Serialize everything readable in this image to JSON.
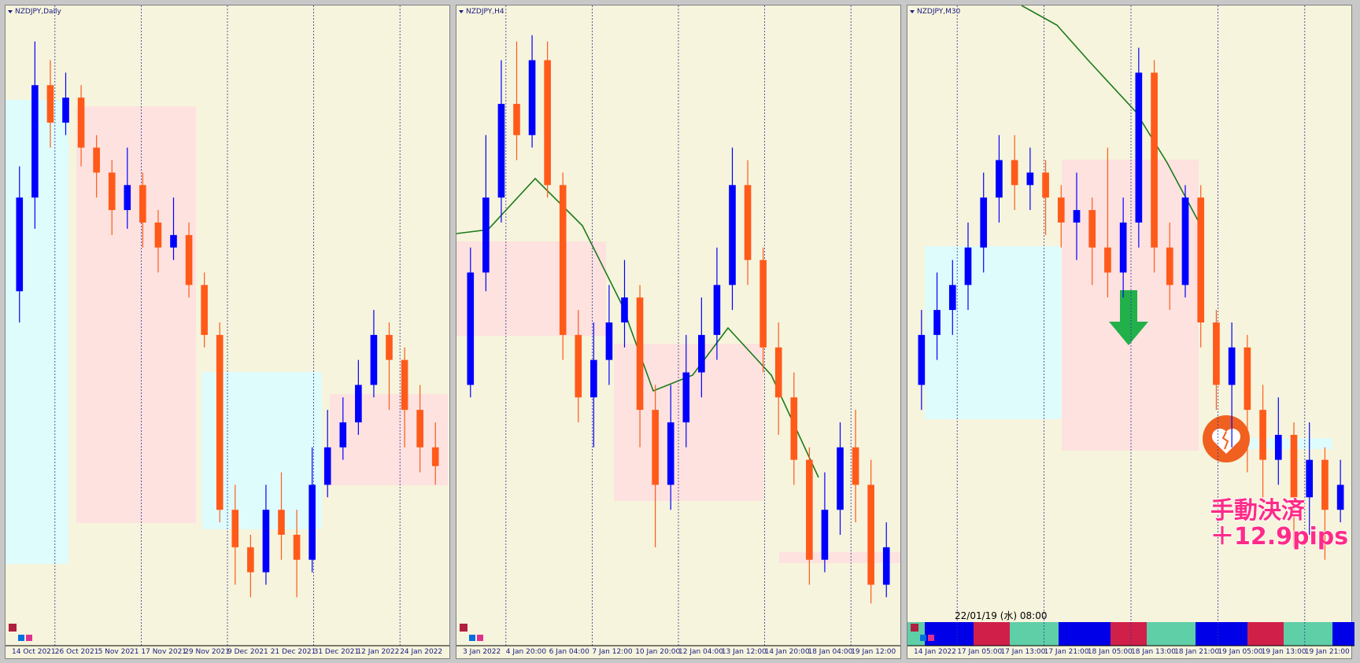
{
  "chart_data": [
    {
      "type": "candlestick",
      "title": "NZDJPY,Daily",
      "ylim": [
        0,
        100
      ],
      "up_color": "#0000ff",
      "down_color": "#ff5a1a",
      "categories": [
        "14 Oct 2021",
        "26 Oct 2021",
        "5 Nov 2021",
        "17 Nov 2021",
        "29 Nov 2021",
        "9 Dec 2021",
        "21 Dec 2021",
        "31 Dec 2021",
        "12 Jan 2022",
        "24 Jan 2022"
      ],
      "open": [
        55,
        70,
        88,
        82,
        86,
        78,
        74,
        68,
        72,
        66,
        62,
        64,
        56,
        48,
        20,
        14,
        10,
        20,
        16,
        12,
        24,
        30,
        34,
        40,
        48,
        44,
        36,
        30
      ],
      "high": [
        75,
        95,
        92,
        90,
        88,
        80,
        76,
        78,
        74,
        68,
        70,
        66,
        58,
        50,
        24,
        16,
        24,
        26,
        20,
        30,
        36,
        38,
        44,
        52,
        50,
        46,
        40,
        34
      ],
      "low": [
        50,
        65,
        78,
        80,
        75,
        70,
        64,
        65,
        62,
        58,
        60,
        54,
        46,
        18,
        8,
        6,
        8,
        12,
        6,
        10,
        22,
        28,
        32,
        38,
        36,
        30,
        26,
        24
      ],
      "close": [
        70,
        88,
        82,
        86,
        78,
        74,
        68,
        72,
        66,
        62,
        64,
        56,
        48,
        20,
        14,
        10,
        20,
        16,
        12,
        24,
        30,
        34,
        40,
        48,
        44,
        36,
        30,
        27
      ]
    },
    {
      "type": "candlestick",
      "title": "NZDJPY,H4",
      "ylim": [
        0,
        100
      ],
      "up_color": "#0000ff",
      "down_color": "#ff5a1a",
      "categories": [
        "3 Jan 2022",
        "4 Jan 20:00",
        "6 Jan 04:00",
        "7 Jan 12:00",
        "10 Jan 20:00",
        "12 Jan 04:00",
        "13 Jan 12:00",
        "14 Jan 20:00",
        "18 Jan 04:00",
        "19 Jan 12:00"
      ],
      "open": [
        40,
        58,
        70,
        85,
        80,
        92,
        72,
        48,
        38,
        44,
        50,
        54,
        36,
        24,
        34,
        42,
        48,
        56,
        72,
        60,
        46,
        38,
        28,
        12,
        20,
        30,
        24,
        8
      ],
      "high": [
        62,
        80,
        92,
        95,
        96,
        95,
        74,
        52,
        50,
        56,
        60,
        56,
        40,
        40,
        48,
        54,
        62,
        78,
        76,
        62,
        50,
        42,
        30,
        26,
        34,
        36,
        28,
        18
      ],
      "low": [
        38,
        55,
        66,
        76,
        78,
        70,
        44,
        34,
        30,
        40,
        46,
        30,
        14,
        20,
        30,
        38,
        44,
        52,
        56,
        42,
        32,
        24,
        8,
        10,
        16,
        18,
        5,
        6
      ],
      "close": [
        58,
        70,
        85,
        80,
        92,
        72,
        48,
        38,
        44,
        50,
        54,
        36,
        24,
        34,
        42,
        48,
        56,
        72,
        60,
        46,
        38,
        28,
        12,
        20,
        30,
        24,
        8,
        14
      ]
    },
    {
      "type": "candlestick",
      "title": "NZDJPY,M30",
      "ylim": [
        0,
        100
      ],
      "up_color": "#0000ff",
      "down_color": "#ff5a1a",
      "categories": [
        "14 Jan 2022",
        "17 Jan 05:00",
        "17 Jan 13:00",
        "17 Jan 21:00",
        "18 Jan 05:00",
        "18 Jan 13:00",
        "18 Jan 21:00",
        "19 Jan 05:00",
        "19 Jan 13:00",
        "19 Jan 21:00"
      ],
      "open": [
        40,
        48,
        52,
        56,
        62,
        70,
        76,
        72,
        74,
        70,
        66,
        68,
        62,
        58,
        66,
        90,
        62,
        56,
        70,
        50,
        40,
        46,
        36,
        28,
        32,
        22,
        28,
        20
      ],
      "high": [
        52,
        58,
        60,
        66,
        74,
        80,
        80,
        78,
        76,
        72,
        74,
        70,
        78,
        70,
        94,
        92,
        66,
        72,
        72,
        52,
        50,
        48,
        40,
        38,
        34,
        34,
        30,
        28
      ],
      "low": [
        36,
        44,
        48,
        52,
        58,
        66,
        68,
        68,
        64,
        62,
        60,
        56,
        54,
        54,
        62,
        58,
        52,
        54,
        46,
        36,
        30,
        26,
        22,
        24,
        14,
        16,
        12,
        18
      ],
      "close": [
        48,
        52,
        56,
        62,
        70,
        76,
        72,
        74,
        70,
        66,
        68,
        62,
        58,
        66,
        90,
        62,
        56,
        70,
        50,
        40,
        46,
        36,
        28,
        32,
        22,
        28,
        20,
        24
      ],
      "cursor_label": "22/01/19 (水) 08:00",
      "annotation": [
        "手動決済",
        "＋12.9pips"
      ]
    }
  ]
}
